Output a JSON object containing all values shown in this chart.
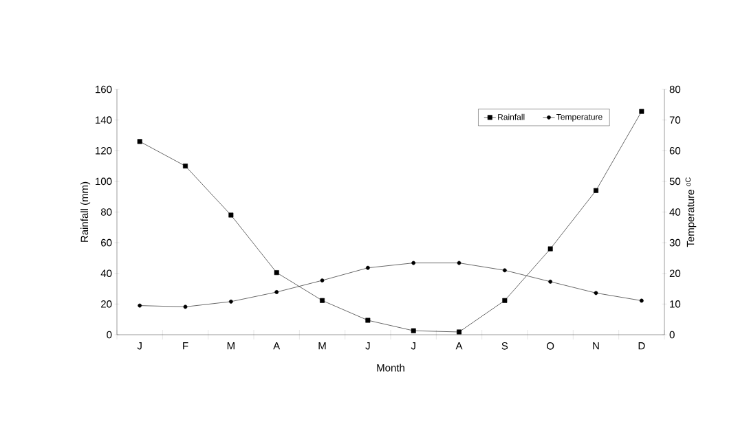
{
  "chart_data": {
    "type": "line",
    "xlabel": "Month",
    "ylabel": "Rainfall (mm)",
    "y2label": "Temperature $^{oC}$",
    "categories": [
      "J",
      "F",
      "M",
      "A",
      "M",
      "J",
      "J",
      "A",
      "S",
      "O",
      "N",
      "D"
    ],
    "series": [
      {
        "name": "Rainfall",
        "color": "#000000",
        "marker": "square",
        "values": [
          126,
          110,
          78,
          40.5,
          22.3,
          9.4,
          2.6,
          1.8,
          22.3,
          56,
          94,
          145.6
        ]
      },
      {
        "name": "Temperature",
        "color": "#000000",
        "marker": "circle",
        "axis": "y2",
        "values": [
          9.5,
          9.1,
          10.8,
          13.9,
          17.7,
          21.8,
          23.4,
          23.4,
          21,
          17.3,
          13.6,
          11.1
        ]
      }
    ],
    "ylim": [
      0,
      160
    ],
    "yticks": [
      0,
      20,
      40,
      60,
      80,
      100,
      120,
      140,
      160
    ],
    "y2lim": [
      0,
      80
    ],
    "y2ticks": [
      0,
      10,
      20,
      30,
      40,
      50,
      60,
      70,
      80
    ],
    "legend": "top right",
    "grid": false
  }
}
